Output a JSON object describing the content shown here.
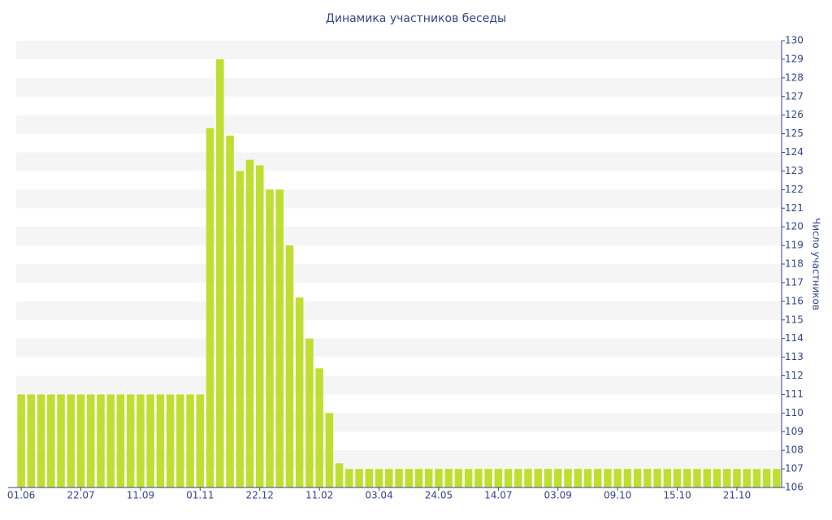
{
  "chart_data": {
    "type": "bar",
    "title": "Динамика участников беседы",
    "y_label": "Число участников",
    "categories": [
      "01.06",
      null,
      null,
      null,
      null,
      null,
      "22.07",
      null,
      null,
      null,
      null,
      null,
      "11.09",
      null,
      null,
      null,
      null,
      null,
      "01.11",
      null,
      null,
      null,
      null,
      null,
      "22.12",
      null,
      null,
      null,
      null,
      null,
      "11.02",
      null,
      null,
      null,
      null,
      null,
      "03.04",
      null,
      null,
      null,
      null,
      null,
      "24.05",
      null,
      null,
      null,
      null,
      null,
      "14.07",
      null,
      null,
      null,
      null,
      null,
      "03.09",
      null,
      null,
      null,
      null,
      null,
      "09.10",
      null,
      null,
      null,
      null,
      null,
      "15.10",
      null,
      null,
      null,
      null,
      null,
      "21.10",
      null,
      null,
      null,
      null
    ],
    "values": [
      111,
      111,
      111,
      111,
      111,
      111,
      111,
      111,
      111,
      111,
      111,
      111,
      111,
      111,
      111,
      111,
      111,
      111,
      111,
      125.3,
      129,
      124.9,
      123,
      123.6,
      123.3,
      122,
      122,
      119,
      116.2,
      114,
      112.4,
      110,
      107.3,
      107,
      107,
      107,
      107,
      107,
      107,
      107,
      107,
      107,
      107,
      107,
      107,
      107,
      107,
      107,
      107,
      107,
      107,
      107,
      107,
      107,
      107,
      107,
      107,
      107,
      107,
      107,
      107,
      107,
      107,
      107,
      107,
      107,
      107,
      107,
      107,
      107,
      107,
      107,
      107,
      107,
      107,
      107,
      107
    ],
    "color": "#bedf31",
    "ylim": [
      106,
      130
    ],
    "yticks": [
      106,
      107,
      108,
      109,
      110,
      111,
      112,
      113,
      114,
      115,
      116,
      117,
      118,
      119,
      120,
      121,
      122,
      123,
      124,
      125,
      126,
      127,
      128,
      129,
      130
    ],
    "grid": true
  }
}
